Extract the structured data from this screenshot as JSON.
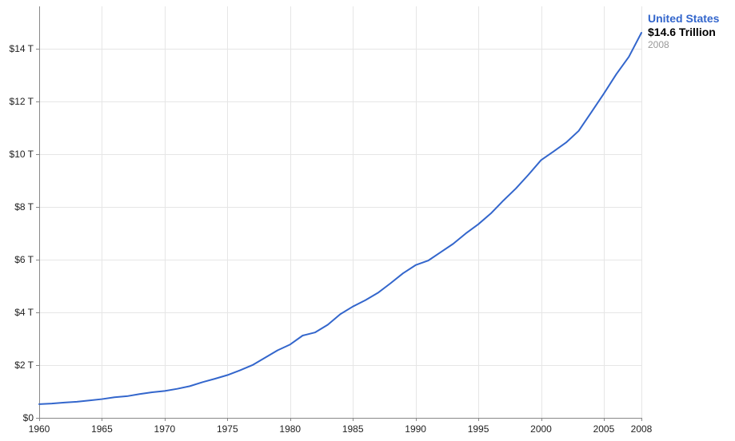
{
  "chart_data": {
    "type": "line",
    "title": "",
    "xlabel": "",
    "ylabel": "",
    "xlim": [
      1960,
      2008
    ],
    "ylim": [
      0,
      15.6
    ],
    "grid": true,
    "x_ticks": [
      {
        "value": 1960,
        "label": "1960"
      },
      {
        "value": 1965,
        "label": "1965"
      },
      {
        "value": 1970,
        "label": "1970"
      },
      {
        "value": 1975,
        "label": "1975"
      },
      {
        "value": 1980,
        "label": "1980"
      },
      {
        "value": 1985,
        "label": "1985"
      },
      {
        "value": 1990,
        "label": "1990"
      },
      {
        "value": 1995,
        "label": "1995"
      },
      {
        "value": 2000,
        "label": "2000"
      },
      {
        "value": 2005,
        "label": "2005"
      },
      {
        "value": 2008,
        "label": "2008"
      }
    ],
    "y_ticks": [
      {
        "value": 0,
        "label": "$0"
      },
      {
        "value": 2,
        "label": "$2 T"
      },
      {
        "value": 4,
        "label": "$4 T"
      },
      {
        "value": 6,
        "label": "$6 T"
      },
      {
        "value": 8,
        "label": "$8 T"
      },
      {
        "value": 10,
        "label": "$10 T"
      },
      {
        "value": 12,
        "label": "$12 T"
      },
      {
        "value": 14,
        "label": "$14 T"
      }
    ],
    "series": [
      {
        "name": "United States",
        "color": "#3366cc",
        "x": [
          1960,
          1961,
          1962,
          1963,
          1964,
          1965,
          1966,
          1967,
          1968,
          1969,
          1970,
          1971,
          1972,
          1973,
          1974,
          1975,
          1976,
          1977,
          1978,
          1979,
          1980,
          1981,
          1982,
          1983,
          1984,
          1985,
          1986,
          1987,
          1988,
          1989,
          1990,
          1991,
          1992,
          1993,
          1994,
          1995,
          1996,
          1997,
          1998,
          1999,
          2000,
          2001,
          2002,
          2003,
          2004,
          2005,
          2006,
          2007,
          2008
        ],
        "values": [
          0.52,
          0.54,
          0.58,
          0.61,
          0.66,
          0.71,
          0.78,
          0.82,
          0.9,
          0.97,
          1.02,
          1.1,
          1.2,
          1.35,
          1.48,
          1.62,
          1.8,
          2.0,
          2.28,
          2.56,
          2.78,
          3.12,
          3.24,
          3.53,
          3.93,
          4.22,
          4.46,
          4.74,
          5.1,
          5.48,
          5.79,
          5.96,
          6.28,
          6.6,
          6.99,
          7.34,
          7.75,
          8.24,
          8.7,
          9.22,
          9.77,
          10.1,
          10.44,
          10.88,
          11.58,
          12.29,
          13.03,
          13.69,
          14.6
        ]
      }
    ]
  },
  "legend": {
    "series_name": "United States",
    "value_label": "$14.6 Trillion",
    "year_label": "2008"
  }
}
